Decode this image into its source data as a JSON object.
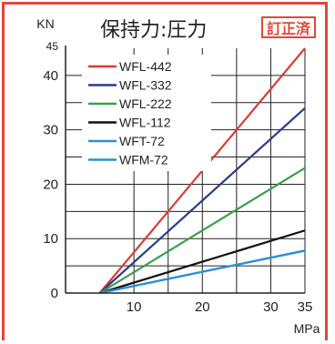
{
  "chart_data": {
    "type": "line",
    "title": "保持力:圧力",
    "stamp": "訂正済",
    "ylabel": "KN",
    "xlabel": "MPa",
    "xlim": [
      0,
      35
    ],
    "ylim": [
      0,
      45
    ],
    "x_ticks": [
      10,
      20,
      30,
      35
    ],
    "y_ticks": [
      0,
      10,
      20,
      30,
      40,
      45
    ],
    "x_grid": [
      10,
      15,
      20,
      25,
      30,
      35
    ],
    "y_grid": [
      5,
      10,
      15,
      20,
      25,
      30,
      35,
      40
    ],
    "legend_position": "top-left",
    "series": [
      {
        "name": "WFL-442",
        "color": "#e03a32",
        "x": [
          5,
          35
        ],
        "y": [
          0,
          45
        ]
      },
      {
        "name": "WFL-332",
        "color": "#2b3b8f",
        "x": [
          5,
          35
        ],
        "y": [
          0,
          34
        ]
      },
      {
        "name": "WFL-222",
        "color": "#3aa04a",
        "x": [
          5,
          35
        ],
        "y": [
          0,
          23
        ]
      },
      {
        "name": "WFL-112",
        "color": "#111111",
        "x": [
          5,
          35
        ],
        "y": [
          0,
          11.5
        ]
      },
      {
        "name": "WFT-72",
        "color": "#2a8fd8",
        "x": [
          5,
          35
        ],
        "y": [
          0,
          7.8
        ]
      },
      {
        "name": "WFM-72",
        "color": "#2a8fd8",
        "x": [
          5,
          35
        ],
        "y": [
          0,
          7.8
        ]
      }
    ]
  }
}
